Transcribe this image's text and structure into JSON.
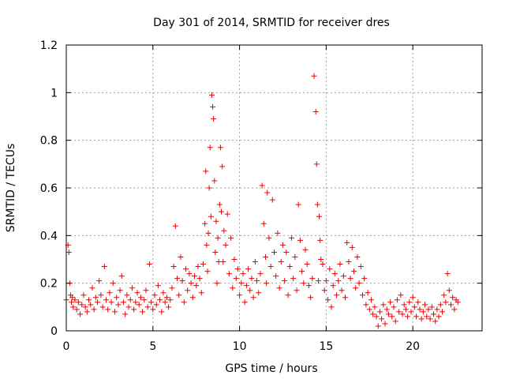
{
  "chart_data": {
    "type": "scatter",
    "title": "Day 301 of 2014, SRMTID for receiver dres",
    "xlabel": "GPS time / hours",
    "ylabel": "SRMTID / TECUs",
    "xlim": [
      0,
      24
    ],
    "ylim": [
      0,
      1.2
    ],
    "xticks": [
      0,
      5,
      10,
      15,
      20
    ],
    "xtick_labels": [
      "0",
      "5",
      "10",
      "15",
      "20"
    ],
    "yticks": [
      0,
      0.2,
      0.4,
      0.6,
      0.8,
      1,
      1.2
    ],
    "ytick_labels": [
      "0",
      "0.2",
      "0.4",
      "0.6",
      "0.8",
      "1",
      "1.2"
    ],
    "grid": true,
    "marker": "+",
    "color": "#ee0000",
    "series": [
      {
        "name": "SRMTID",
        "x": [
          0.0,
          0.1,
          0.15,
          0.2,
          0.25,
          0.3,
          0.35,
          0.4,
          0.5,
          0.6,
          0.7,
          0.8,
          0.9,
          1.0,
          1.1,
          1.2,
          1.3,
          1.4,
          1.5,
          1.6,
          1.7,
          1.8,
          1.9,
          2.0,
          2.1,
          2.2,
          2.3,
          2.4,
          2.5,
          2.6,
          2.7,
          2.8,
          2.9,
          3.0,
          3.1,
          3.2,
          3.3,
          3.4,
          3.5,
          3.6,
          3.7,
          3.8,
          3.9,
          4.0,
          4.1,
          4.2,
          4.3,
          4.4,
          4.5,
          4.6,
          4.7,
          4.8,
          4.9,
          5.0,
          5.1,
          5.2,
          5.3,
          5.4,
          5.5,
          5.6,
          5.7,
          5.8,
          5.9,
          6.0,
          6.1,
          6.2,
          6.3,
          6.4,
          6.5,
          6.6,
          6.7,
          6.8,
          6.9,
          7.0,
          7.1,
          7.2,
          7.3,
          7.4,
          7.5,
          7.6,
          7.7,
          7.8,
          7.9,
          8.0,
          8.05,
          8.1,
          8.15,
          8.2,
          8.25,
          8.3,
          8.35,
          8.4,
          8.45,
          8.5,
          8.55,
          8.6,
          8.65,
          8.7,
          8.75,
          8.8,
          8.85,
          8.9,
          8.95,
          9.0,
          9.05,
          9.1,
          9.2,
          9.3,
          9.4,
          9.5,
          9.6,
          9.7,
          9.8,
          9.9,
          10.0,
          10.1,
          10.2,
          10.3,
          10.4,
          10.5,
          10.6,
          10.7,
          10.8,
          10.9,
          11.0,
          11.1,
          11.2,
          11.3,
          11.4,
          11.5,
          11.55,
          11.6,
          11.7,
          11.8,
          11.9,
          12.0,
          12.1,
          12.2,
          12.3,
          12.4,
          12.5,
          12.6,
          12.7,
          12.8,
          12.9,
          13.0,
          13.1,
          13.2,
          13.3,
          13.4,
          13.5,
          13.6,
          13.7,
          13.8,
          13.9,
          14.0,
          14.1,
          14.2,
          14.3,
          14.4,
          14.45,
          14.5,
          14.55,
          14.6,
          14.65,
          14.7,
          14.8,
          14.9,
          15.0,
          15.1,
          15.2,
          15.3,
          15.4,
          15.5,
          15.6,
          15.7,
          15.8,
          15.9,
          16.0,
          16.1,
          16.2,
          16.3,
          16.4,
          16.5,
          16.6,
          16.7,
          16.8,
          16.9,
          17.0,
          17.1,
          17.2,
          17.3,
          17.4,
          17.5,
          17.6,
          17.7,
          17.8,
          17.9,
          18.0,
          18.1,
          18.2,
          18.3,
          18.4,
          18.5,
          18.6,
          18.7,
          18.8,
          18.9,
          19.0,
          19.1,
          19.2,
          19.3,
          19.4,
          19.5,
          19.6,
          19.7,
          19.8,
          19.9,
          20.0,
          20.1,
          20.2,
          20.3,
          20.4,
          20.5,
          20.6,
          20.7,
          20.8,
          20.9,
          21.0,
          21.1,
          21.2,
          21.3,
          21.4,
          21.5,
          21.6,
          21.7,
          21.8,
          21.9,
          22.0,
          22.1,
          22.2,
          22.3,
          22.4,
          22.5,
          22.6
        ],
        "y": [
          0.13,
          0.36,
          0.33,
          0.2,
          0.15,
          0.12,
          0.14,
          0.1,
          0.13,
          0.09,
          0.12,
          0.07,
          0.11,
          0.15,
          0.1,
          0.08,
          0.13,
          0.11,
          0.18,
          0.09,
          0.14,
          0.12,
          0.21,
          0.15,
          0.1,
          0.27,
          0.13,
          0.09,
          0.16,
          0.12,
          0.2,
          0.08,
          0.14,
          0.11,
          0.17,
          0.23,
          0.12,
          0.07,
          0.15,
          0.1,
          0.13,
          0.18,
          0.09,
          0.12,
          0.16,
          0.11,
          0.14,
          0.08,
          0.13,
          0.17,
          0.1,
          0.28,
          0.12,
          0.09,
          0.15,
          0.11,
          0.19,
          0.13,
          0.08,
          0.16,
          0.12,
          0.14,
          0.1,
          0.13,
          0.18,
          0.27,
          0.44,
          0.22,
          0.15,
          0.31,
          0.21,
          0.12,
          0.26,
          0.17,
          0.24,
          0.2,
          0.14,
          0.23,
          0.19,
          0.27,
          0.22,
          0.16,
          0.28,
          0.45,
          0.67,
          0.36,
          0.25,
          0.41,
          0.6,
          0.77,
          0.48,
          0.99,
          0.94,
          0.89,
          0.63,
          0.33,
          0.46,
          0.2,
          0.39,
          0.29,
          0.53,
          0.77,
          0.5,
          0.69,
          0.29,
          0.42,
          0.36,
          0.49,
          0.24,
          0.39,
          0.18,
          0.3,
          0.22,
          0.26,
          0.15,
          0.2,
          0.24,
          0.12,
          0.19,
          0.26,
          0.17,
          0.22,
          0.14,
          0.29,
          0.21,
          0.16,
          0.24,
          0.61,
          0.45,
          0.31,
          0.2,
          0.58,
          0.39,
          0.27,
          0.55,
          0.33,
          0.23,
          0.41,
          0.18,
          0.29,
          0.36,
          0.21,
          0.33,
          0.15,
          0.27,
          0.39,
          0.22,
          0.31,
          0.17,
          0.53,
          0.38,
          0.25,
          0.2,
          0.34,
          0.28,
          0.19,
          0.14,
          0.22,
          1.07,
          0.92,
          0.7,
          0.53,
          0.21,
          0.48,
          0.38,
          0.3,
          0.28,
          0.17,
          0.21,
          0.13,
          0.26,
          0.1,
          0.19,
          0.24,
          0.15,
          0.21,
          0.28,
          0.17,
          0.23,
          0.14,
          0.37,
          0.29,
          0.22,
          0.35,
          0.25,
          0.18,
          0.31,
          0.2,
          0.27,
          0.15,
          0.22,
          0.11,
          0.16,
          0.09,
          0.13,
          0.07,
          0.1,
          0.06,
          0.02,
          0.08,
          0.05,
          0.11,
          0.03,
          0.09,
          0.07,
          0.12,
          0.06,
          0.1,
          0.04,
          0.13,
          0.08,
          0.15,
          0.07,
          0.11,
          0.09,
          0.06,
          0.12,
          0.08,
          0.14,
          0.1,
          0.06,
          0.12,
          0.09,
          0.05,
          0.08,
          0.11,
          0.06,
          0.09,
          0.05,
          0.1,
          0.07,
          0.04,
          0.09,
          0.06,
          0.11,
          0.08,
          0.15,
          0.12,
          0.24,
          0.17,
          0.11,
          0.14,
          0.09,
          0.13,
          0.12
        ]
      }
    ]
  }
}
